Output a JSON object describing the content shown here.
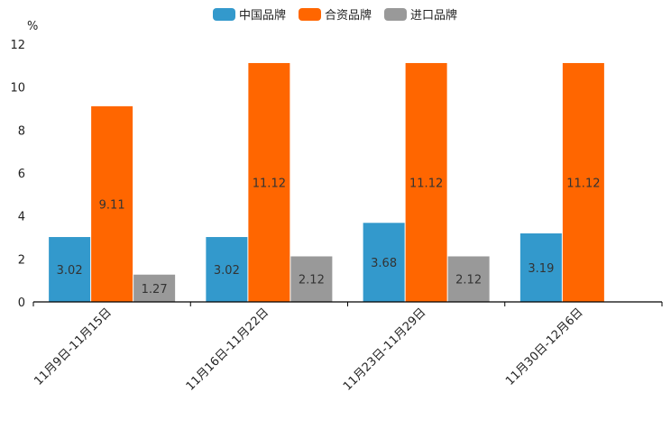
{
  "chart_data": {
    "type": "bar",
    "title": "",
    "xlabel": "",
    "ylabel": "%",
    "ylim": [
      0,
      12
    ],
    "yticks": [
      0,
      2,
      4,
      6,
      8,
      10,
      12
    ],
    "grid": false,
    "legend_position": "top-center",
    "categories": [
      "11月9日-11月15日",
      "11月16日-11月22日",
      "11月23日-11月29日",
      "11月30日-12月6日"
    ],
    "series": [
      {
        "name": "中国品牌",
        "color": "#3399CC",
        "values": [
          3.02,
          3.02,
          3.68,
          3.19
        ]
      },
      {
        "name": "合资品牌",
        "color": "#FF6600",
        "values": [
          9.11,
          11.12,
          11.12,
          11.12
        ]
      },
      {
        "name": "进口品牌",
        "color": "#999999",
        "values": [
          1.27,
          2.12,
          2.12,
          null
        ]
      }
    ]
  }
}
